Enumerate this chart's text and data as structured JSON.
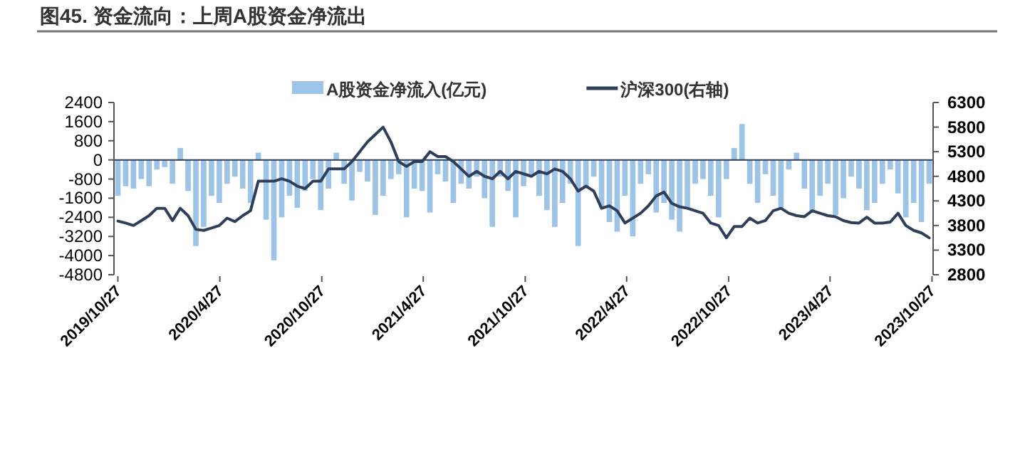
{
  "chart_data": {
    "type": "bar",
    "title": "图45. 资金流向：上周A股资金净流出",
    "x": [
      "2019-10-27",
      "2019-11-10",
      "2019-11-24",
      "2019-12-08",
      "2019-12-22",
      "2020-01-05",
      "2020-01-19",
      "2020-02-02",
      "2020-02-16",
      "2020-03-01",
      "2020-03-15",
      "2020-03-29",
      "2020-04-12",
      "2020-04-26",
      "2020-05-10",
      "2020-05-24",
      "2020-06-07",
      "2020-06-21",
      "2020-07-05",
      "2020-07-19",
      "2020-08-02",
      "2020-08-16",
      "2020-08-30",
      "2020-09-13",
      "2020-09-27",
      "2020-10-11",
      "2020-10-25",
      "2020-11-08",
      "2020-11-22",
      "2020-12-06",
      "2020-12-20",
      "2021-01-03",
      "2021-01-17",
      "2021-01-31",
      "2021-02-14",
      "2021-02-28",
      "2021-03-14",
      "2021-03-28",
      "2021-04-11",
      "2021-04-25",
      "2021-05-09",
      "2021-05-23",
      "2021-06-06",
      "2021-06-20",
      "2021-07-04",
      "2021-07-18",
      "2021-08-01",
      "2021-08-15",
      "2021-08-29",
      "2021-09-12",
      "2021-09-26",
      "2021-10-10",
      "2021-10-24",
      "2021-11-07",
      "2021-11-21",
      "2021-12-05",
      "2021-12-19",
      "2022-01-02",
      "2022-01-16",
      "2022-01-30",
      "2022-02-13",
      "2022-02-27",
      "2022-03-13",
      "2022-03-27",
      "2022-04-10",
      "2022-04-24",
      "2022-05-08",
      "2022-05-22",
      "2022-06-05",
      "2022-06-19",
      "2022-07-03",
      "2022-07-17",
      "2022-07-31",
      "2022-08-14",
      "2022-08-28",
      "2022-09-11",
      "2022-09-25",
      "2022-10-09",
      "2022-10-23",
      "2022-11-06",
      "2022-11-20",
      "2022-12-04",
      "2022-12-18",
      "2023-01-01",
      "2023-01-15",
      "2023-01-29",
      "2023-02-12",
      "2023-02-26",
      "2023-03-12",
      "2023-03-26",
      "2023-04-09",
      "2023-04-23",
      "2023-05-07",
      "2023-05-21",
      "2023-06-04",
      "2023-06-18",
      "2023-07-02",
      "2023-07-16",
      "2023-07-30",
      "2023-08-13",
      "2023-08-27",
      "2023-09-10",
      "2023-09-24",
      "2023-10-08",
      "2023-10-22"
    ],
    "series": [
      {
        "name": "A股资金净流入(亿元)",
        "color": "#9dc3e6",
        "values": [
          -1500,
          -1100,
          -1200,
          -800,
          -1100,
          -400,
          -300,
          -1000,
          500,
          -1300,
          -3600,
          -2800,
          -1500,
          -1800,
          -1000,
          -700,
          -1200,
          -1800,
          300,
          -2500,
          -4200,
          -2400,
          -1500,
          -2000,
          -1300,
          -800,
          -2100,
          -1200,
          300,
          -1000,
          -1700,
          -500,
          -900,
          -2300,
          -1500,
          -800,
          -600,
          -2400,
          -1200,
          -1300,
          -2200,
          -600,
          -900,
          -1800,
          -1000,
          -1200,
          -700,
          -1600,
          -2800,
          -700,
          -1300,
          -2400,
          -1100,
          -600,
          -1500,
          -2100,
          -2800,
          -1800,
          -1000,
          -3600,
          -1200,
          -700,
          -2000,
          -2600,
          -3000,
          -1500,
          -3200,
          -1000,
          -600,
          -2200,
          -1800,
          -2500,
          -3000,
          -2000,
          -1000,
          -800,
          -1500,
          -2400,
          -800,
          500,
          1500,
          -1000,
          -1800,
          -600,
          -1500,
          -2000,
          -400,
          300,
          -1200,
          -2200,
          -1500,
          -1000,
          -2300,
          -1600,
          -700,
          -1200,
          -2100,
          -1800,
          -1000,
          -400,
          -1400,
          -2400,
          -1800,
          -2600,
          -1000
        ]
      },
      {
        "name": "沪深300(右轴)",
        "type": "line",
        "axis": "y2",
        "color": "#2f3e5a",
        "values": [
          3890,
          3850,
          3800,
          3900,
          4000,
          4150,
          4150,
          3900,
          4150,
          4000,
          3720,
          3700,
          3750,
          3800,
          3950,
          3880,
          4000,
          4100,
          4700,
          4700,
          4700,
          4750,
          4700,
          4600,
          4550,
          4700,
          4700,
          4950,
          4950,
          4950,
          5100,
          5300,
          5500,
          5650,
          5800,
          5500,
          5100,
          5000,
          5100,
          5100,
          5300,
          5200,
          5200,
          5100,
          4950,
          4800,
          4900,
          4800,
          4750,
          4900,
          4750,
          4900,
          4850,
          4800,
          4900,
          4850,
          4950,
          4900,
          4750,
          4500,
          4600,
          4500,
          4150,
          4200,
          4100,
          3850,
          3950,
          4050,
          4200,
          4400,
          4480,
          4250,
          4180,
          4150,
          4100,
          4050,
          3850,
          3800,
          3550,
          3780,
          3780,
          3950,
          3850,
          3900,
          4100,
          4150,
          4050,
          4000,
          3980,
          4100,
          4050,
          4000,
          3980,
          3900,
          3860,
          3850,
          3970,
          3850,
          3850,
          3870,
          4050,
          3800,
          3700,
          3650,
          3550
        ]
      }
    ],
    "xlim": [
      "2019-10-20",
      "2023-10-29"
    ],
    "xticks": [
      {
        "value": "2019-10-27",
        "label": "2019/10/27"
      },
      {
        "value": "2020-04-27",
        "label": "2020/4/27"
      },
      {
        "value": "2020-10-27",
        "label": "2020/10/27"
      },
      {
        "value": "2021-04-27",
        "label": "2021/4/27"
      },
      {
        "value": "2021-10-27",
        "label": "2021/10/27"
      },
      {
        "value": "2022-04-27",
        "label": "2022/4/27"
      },
      {
        "value": "2022-10-27",
        "label": "2022/10/27"
      },
      {
        "value": "2023-04-27",
        "label": "2023/4/27"
      },
      {
        "value": "2023-10-27",
        "label": "2023/10/27"
      }
    ],
    "ylim": [
      -4800,
      2400
    ],
    "yticks": [
      -4800,
      -4000,
      -3200,
      -2400,
      -1600,
      -800,
      0,
      800,
      1600,
      2400
    ],
    "y2lim": [
      2800,
      6300
    ],
    "y2ticks": [
      2800,
      3300,
      3800,
      4300,
      4800,
      5300,
      5800,
      6300
    ],
    "legend": "top"
  }
}
